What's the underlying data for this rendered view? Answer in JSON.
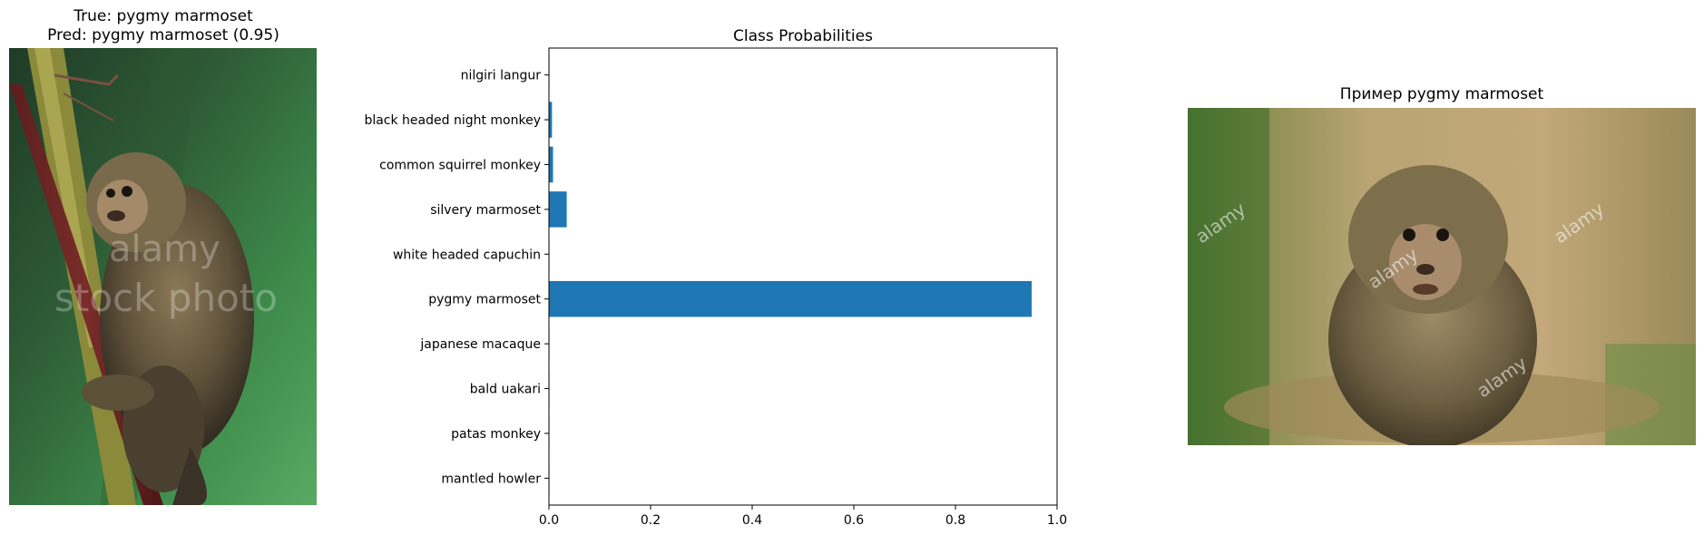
{
  "left_panel": {
    "title_line1": "True: pygmy marmoset",
    "title_line2": "Pred: pygmy marmoset (0.95)",
    "image": "pygmy marmoset photo",
    "watermark_line1": "alamy",
    "watermark_line2": "stock photo"
  },
  "chart_data": {
    "type": "bar",
    "orientation": "horizontal",
    "title": "Class Probabilities",
    "categories": [
      "nilgiri langur",
      "black headed night monkey",
      "common squirrel monkey",
      "silvery marmoset",
      "white headed capuchin",
      "pygmy marmoset",
      "japanese macaque",
      "bald uakari",
      "patas monkey",
      "mantled howler"
    ],
    "values": [
      0.001,
      0.006,
      0.008,
      0.035,
      0.001,
      0.95,
      0.001,
      0.001,
      0.001,
      0.001
    ],
    "xlim": [
      0,
      1.0
    ],
    "xticks": [
      "0.0",
      "0.2",
      "0.4",
      "0.6",
      "0.8",
      "1.0"
    ],
    "bar_color": "#1f77b4",
    "grid": false
  },
  "right_panel": {
    "title": "Пример pygmy marmoset",
    "image": "pygmy marmoset example photo",
    "watermark": "alamy"
  }
}
